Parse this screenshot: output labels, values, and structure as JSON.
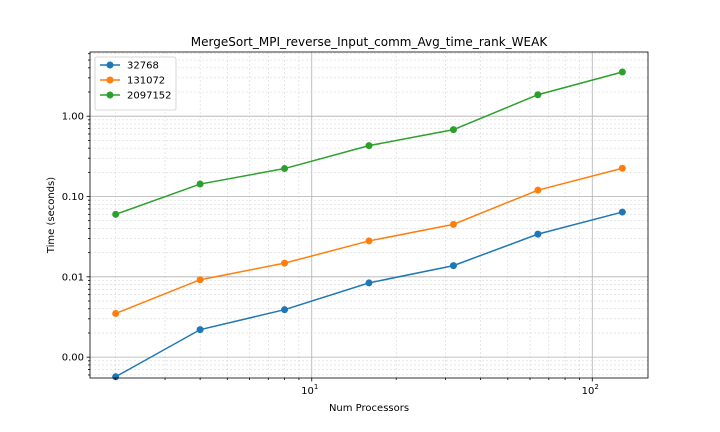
{
  "chart_data": {
    "type": "line",
    "title": "MergeSort_MPI_reverse_Input_comm_Avg_time_rank_WEAK",
    "xlabel": "Num Processors",
    "ylabel": "Time (seconds)",
    "xscale": "log",
    "yscale": "log",
    "x": [
      2,
      4,
      8,
      16,
      32,
      64,
      128
    ],
    "xlim": [
      1.62,
      158
    ],
    "ylim": [
      0.00055,
      6.3
    ],
    "x_ticks": [
      {
        "value": 10,
        "base": "10",
        "exp": "1"
      },
      {
        "value": 100,
        "base": "10",
        "exp": "2"
      }
    ],
    "y_ticks": [
      {
        "value": 0.001,
        "label": "0.00"
      },
      {
        "value": 0.01,
        "label": "0.01"
      },
      {
        "value": 0.1,
        "label": "0.10"
      },
      {
        "value": 1,
        "label": "1.00"
      }
    ],
    "grid": true,
    "legend_position": "top-left",
    "series": [
      {
        "name": "32768",
        "color": "#1f77b4",
        "values": [
          0.00057,
          0.0022,
          0.0039,
          0.0084,
          0.0138,
          0.034,
          0.064
        ]
      },
      {
        "name": "131072",
        "color": "#ff7f0e",
        "values": [
          0.0035,
          0.0092,
          0.0148,
          0.028,
          0.045,
          0.12,
          0.225
        ]
      },
      {
        "name": "2097152",
        "color": "#2ca02c",
        "values": [
          0.06,
          0.143,
          0.223,
          0.43,
          0.68,
          1.85,
          3.55
        ]
      }
    ]
  }
}
